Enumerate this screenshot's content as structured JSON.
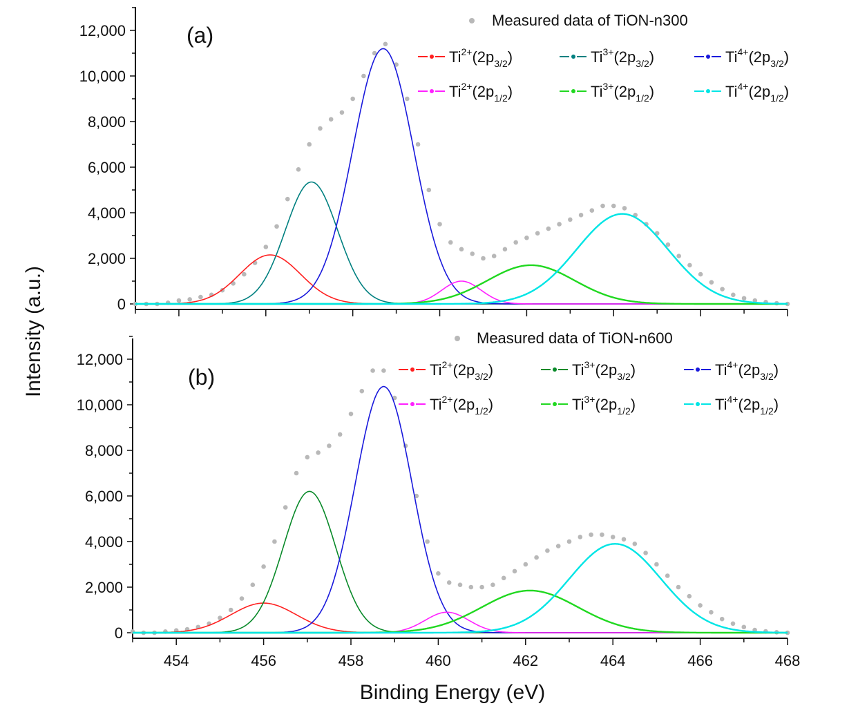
{
  "chart_data": [
    {
      "type": "line",
      "panel_label": "(a)",
      "xlim": [
        453,
        468
      ],
      "ylim": [
        0,
        13000
      ],
      "x_ticks": [
        454,
        456,
        458,
        460,
        462,
        464,
        466,
        468
      ],
      "x_tick_labels_shown": false,
      "y_ticks": [
        0,
        2000,
        4000,
        6000,
        8000,
        10000,
        12000
      ],
      "y_tick_labels": [
        "0",
        "2,000",
        "4,000",
        "6,000",
        "8,000",
        "10,000",
        "12,000"
      ],
      "grid": false,
      "legend_position": "top-right",
      "measured": {
        "name": "Measured data of TiON-n300",
        "color": "#b8b8b8",
        "x": [
          453.0,
          453.25,
          453.5,
          453.75,
          454.0,
          454.25,
          454.5,
          454.75,
          455.0,
          455.25,
          455.5,
          455.75,
          456.0,
          456.25,
          456.5,
          456.75,
          457.0,
          457.25,
          457.5,
          457.75,
          458.0,
          458.25,
          458.5,
          458.75,
          459.0,
          459.25,
          459.5,
          459.75,
          460.0,
          460.25,
          460.5,
          460.75,
          461.0,
          461.25,
          461.5,
          461.75,
          462.0,
          462.25,
          462.5,
          462.75,
          463.0,
          463.25,
          463.5,
          463.75,
          464.0,
          464.25,
          464.5,
          464.75,
          465.0,
          465.25,
          465.5,
          465.75,
          466.0,
          466.25,
          466.5,
          466.75,
          467.0,
          467.25,
          467.5,
          467.75,
          468.0
        ],
        "y": [
          0,
          0,
          0,
          50,
          150,
          200,
          300,
          400,
          600,
          900,
          1300,
          1800,
          2500,
          3400,
          4600,
          5900,
          7000,
          7700,
          8100,
          8400,
          9000,
          10000,
          11000,
          11400,
          10500,
          9000,
          7000,
          5000,
          3500,
          2700,
          2400,
          2200,
          2000,
          2100,
          2400,
          2700,
          2900,
          3100,
          3300,
          3500,
          3700,
          3900,
          4100,
          4300,
          4300,
          4200,
          3900,
          3500,
          3100,
          2600,
          2100,
          1700,
          1300,
          950,
          650,
          400,
          250,
          150,
          80,
          30,
          0
        ]
      },
      "series": [
        {
          "ion": "Ti",
          "charge": "2+",
          "orbital": "2p",
          "j": "3/2",
          "color": "#ff2020",
          "center": 456.1,
          "amplitude": 2150,
          "sigma": 0.7
        },
        {
          "ion": "Ti",
          "charge": "3+",
          "orbital": "2p",
          "j": "3/2",
          "color": "#008080",
          "center": 457.05,
          "amplitude": 5350,
          "sigma": 0.6
        },
        {
          "ion": "Ti",
          "charge": "4+",
          "orbital": "2p",
          "j": "3/2",
          "color": "#1a1adc",
          "center": 458.7,
          "amplitude": 11200,
          "sigma": 0.7
        },
        {
          "ion": "Ti",
          "charge": "2+",
          "orbital": "2p",
          "j": "1/2",
          "color": "#ff20ff",
          "center": 460.5,
          "amplitude": 1000,
          "sigma": 0.45
        },
        {
          "ion": "Ti",
          "charge": "3+",
          "orbital": "2p",
          "j": "1/2",
          "color": "#20d820",
          "center": 462.1,
          "amplitude": 1700,
          "sigma": 1.0
        },
        {
          "ion": "Ti",
          "charge": "4+",
          "orbital": "2p",
          "j": "1/2",
          "color": "#00e5e5",
          "center": 464.2,
          "amplitude": 3950,
          "sigma": 1.05
        }
      ]
    },
    {
      "type": "line",
      "panel_label": "(b)",
      "xlim": [
        453,
        468
      ],
      "ylim": [
        0,
        13000
      ],
      "x_ticks": [
        454,
        456,
        458,
        460,
        462,
        464,
        466,
        468
      ],
      "x_tick_labels": [
        "454",
        "456",
        "458",
        "460",
        "462",
        "464",
        "466",
        "468"
      ],
      "y_ticks": [
        0,
        2000,
        4000,
        6000,
        8000,
        10000,
        12000
      ],
      "y_tick_labels": [
        "0",
        "2,000",
        "4,000",
        "6,000",
        "8,000",
        "10,000",
        "12,000"
      ],
      "grid": false,
      "legend_position": "top-right",
      "measured": {
        "name": "Measured data of TiON-n600",
        "color": "#b8b8b8",
        "x": [
          453.0,
          453.25,
          453.5,
          453.75,
          454.0,
          454.25,
          454.5,
          454.75,
          455.0,
          455.25,
          455.5,
          455.75,
          456.0,
          456.25,
          456.5,
          456.75,
          457.0,
          457.25,
          457.5,
          457.75,
          458.0,
          458.25,
          458.5,
          458.75,
          459.0,
          459.25,
          459.5,
          459.75,
          460.0,
          460.25,
          460.5,
          460.75,
          461.0,
          461.25,
          461.5,
          461.75,
          462.0,
          462.25,
          462.5,
          462.75,
          463.0,
          463.25,
          463.5,
          463.75,
          464.0,
          464.25,
          464.5,
          464.75,
          465.0,
          465.25,
          465.5,
          465.75,
          466.0,
          466.25,
          466.5,
          466.75,
          467.0,
          467.25,
          467.5,
          467.75,
          468.0
        ],
        "y": [
          50,
          0,
          0,
          50,
          100,
          150,
          250,
          400,
          650,
          1000,
          1500,
          2100,
          2900,
          4000,
          5500,
          7000,
          7700,
          7900,
          8200,
          8700,
          9600,
          10600,
          11500,
          11500,
          10300,
          8200,
          6000,
          4000,
          2600,
          2200,
          2100,
          2000,
          2000,
          2100,
          2400,
          2700,
          3000,
          3300,
          3600,
          3800,
          4000,
          4200,
          4300,
          4300,
          4200,
          4100,
          3900,
          3500,
          3000,
          2500,
          2000,
          1600,
          1200,
          900,
          600,
          400,
          250,
          120,
          60,
          20,
          0
        ]
      },
      "series": [
        {
          "ion": "Ti",
          "charge": "2+",
          "orbital": "2p",
          "j": "3/2",
          "color": "#ff2020",
          "center": 456.0,
          "amplitude": 1300,
          "sigma": 0.75
        },
        {
          "ion": "Ti",
          "charge": "3+",
          "orbital": "2p",
          "j": "3/2",
          "color": "#0a8a2a",
          "center": 457.05,
          "amplitude": 6200,
          "sigma": 0.6
        },
        {
          "ion": "Ti",
          "charge": "4+",
          "orbital": "2p",
          "j": "3/2",
          "color": "#1a1adc",
          "center": 458.75,
          "amplitude": 10800,
          "sigma": 0.65
        },
        {
          "ion": "Ti",
          "charge": "2+",
          "orbital": "2p",
          "j": "1/2",
          "color": "#ff20ff",
          "center": 460.2,
          "amplitude": 900,
          "sigma": 0.5
        },
        {
          "ion": "Ti",
          "charge": "3+",
          "orbital": "2p",
          "j": "1/2",
          "color": "#20d820",
          "center": 462.1,
          "amplitude": 1850,
          "sigma": 1.1
        },
        {
          "ion": "Ti",
          "charge": "4+",
          "orbital": "2p",
          "j": "1/2",
          "color": "#00e5e5",
          "center": 464.05,
          "amplitude": 3900,
          "sigma": 1.05
        }
      ]
    }
  ],
  "axes": {
    "ylabel": "Intensity (a.u.)",
    "xlabel": "Binding Energy (eV)"
  }
}
